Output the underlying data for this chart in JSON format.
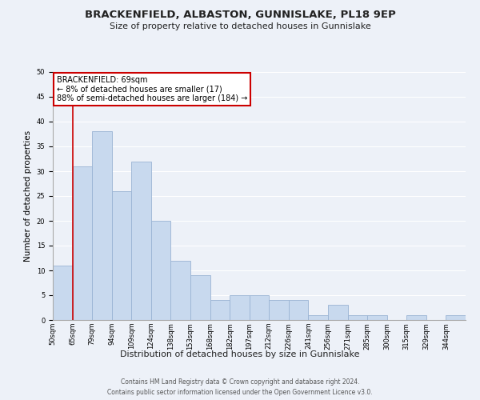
{
  "title": "BRACKENFIELD, ALBASTON, GUNNISLAKE, PL18 9EP",
  "subtitle": "Size of property relative to detached houses in Gunnislake",
  "xlabel": "Distribution of detached houses by size in Gunnislake",
  "ylabel": "Number of detached properties",
  "bin_labels": [
    "50sqm",
    "65sqm",
    "79sqm",
    "94sqm",
    "109sqm",
    "124sqm",
    "138sqm",
    "153sqm",
    "168sqm",
    "182sqm",
    "197sqm",
    "212sqm",
    "226sqm",
    "241sqm",
    "256sqm",
    "271sqm",
    "285sqm",
    "300sqm",
    "315sqm",
    "329sqm",
    "344sqm"
  ],
  "bar_heights": [
    11,
    31,
    38,
    26,
    32,
    20,
    12,
    9,
    4,
    5,
    5,
    4,
    4,
    1,
    3,
    1,
    1,
    0,
    1,
    0,
    1
  ],
  "bar_color": "#c8d9ee",
  "bar_edge_color": "#9ab4d4",
  "vline_x_index": 1,
  "vline_color": "#cc0000",
  "annotation_title": "BRACKENFIELD: 69sqm",
  "annotation_line1": "← 8% of detached houses are smaller (17)",
  "annotation_line2": "88% of semi-detached houses are larger (184) →",
  "annotation_box_color": "#ffffff",
  "annotation_box_edge": "#cc0000",
  "ylim": [
    0,
    50
  ],
  "yticks": [
    0,
    5,
    10,
    15,
    20,
    25,
    30,
    35,
    40,
    45,
    50
  ],
  "footer_line1": "Contains HM Land Registry data © Crown copyright and database right 2024.",
  "footer_line2": "Contains public sector information licensed under the Open Government Licence v3.0.",
  "bg_color": "#edf1f8",
  "grid_color": "#ffffff",
  "title_fontsize": 9.5,
  "subtitle_fontsize": 8,
  "ylabel_fontsize": 7.5,
  "xlabel_fontsize": 8,
  "tick_fontsize": 6,
  "annotation_fontsize": 7,
  "footer_fontsize": 5.5
}
